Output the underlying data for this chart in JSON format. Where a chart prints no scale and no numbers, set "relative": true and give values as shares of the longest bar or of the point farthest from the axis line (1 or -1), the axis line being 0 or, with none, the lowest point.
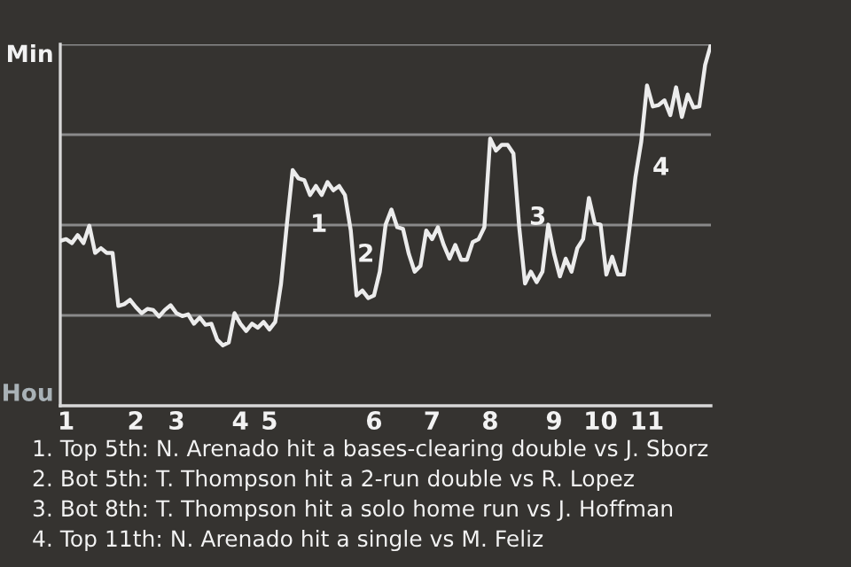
{
  "chart_data": {
    "type": "line",
    "relative": true,
    "categories": [
      null,
      "1",
      null,
      null,
      null,
      null,
      null,
      null,
      null,
      null,
      null,
      null,
      null,
      "2",
      null,
      null,
      null,
      null,
      null,
      null,
      "3",
      null,
      null,
      null,
      null,
      null,
      null,
      null,
      null,
      null,
      null,
      "4",
      null,
      null,
      null,
      null,
      "5",
      null,
      null,
      null,
      null,
      null,
      null,
      null,
      null,
      null,
      null,
      null,
      null,
      null,
      null,
      null,
      null,
      null,
      "6",
      null,
      null,
      null,
      null,
      null,
      null,
      null,
      null,
      null,
      "7",
      null,
      null,
      null,
      null,
      null,
      null,
      null,
      null,
      null,
      "8",
      null,
      null,
      null,
      null,
      null,
      null,
      null,
      null,
      null,
      null,
      "9",
      null,
      null,
      null,
      null,
      null,
      null,
      null,
      "10",
      null,
      null,
      null,
      null,
      null,
      null,
      null,
      "11",
      null,
      null,
      null,
      null,
      null,
      null,
      null,
      null,
      null,
      null,
      null
    ],
    "marker": "none",
    "line_style": "solid",
    "series": [
      {
        "color": "#ececec",
        "values": [
          0.456,
          0.461,
          0.45,
          0.472,
          0.45,
          0.498,
          0.423,
          0.436,
          0.423,
          0.423,
          0.276,
          0.281,
          0.293,
          0.273,
          0.256,
          0.268,
          0.265,
          0.247,
          0.265,
          0.278,
          0.256,
          0.248,
          0.253,
          0.227,
          0.244,
          0.224,
          0.227,
          0.183,
          0.167,
          0.175,
          0.256,
          0.227,
          0.207,
          0.227,
          0.216,
          0.232,
          0.211,
          0.232,
          0.338,
          0.501,
          0.652,
          0.629,
          0.624,
          0.583,
          0.608,
          0.583,
          0.619,
          0.596,
          0.608,
          0.583,
          0.485,
          0.305,
          0.319,
          0.298,
          0.305,
          0.371,
          0.501,
          0.543,
          0.494,
          0.489,
          0.42,
          0.371,
          0.387,
          0.485,
          0.461,
          0.494,
          0.445,
          0.407,
          0.445,
          0.404,
          0.404,
          0.453,
          0.461,
          0.494,
          0.739,
          0.706,
          0.722,
          0.722,
          0.698,
          0.494,
          0.338,
          0.371,
          0.342,
          0.371,
          0.501,
          0.42,
          0.358,
          0.407,
          0.371,
          0.436,
          0.461,
          0.575,
          0.505,
          0.501,
          0.363,
          0.412,
          0.363,
          0.363,
          0.494,
          0.632,
          0.73,
          0.886,
          0.828,
          0.832,
          0.845,
          0.804,
          0.881,
          0.799,
          0.861,
          0.825,
          0.828,
          0.943,
          1.0
        ]
      }
    ],
    "ref_lines": [
      {
        "axis": "y",
        "value": 0.25,
        "color": "#8a8a8a"
      },
      {
        "axis": "y",
        "value": 0.5,
        "color": "#8a8a8a"
      },
      {
        "axis": "y",
        "value": 0.75,
        "color": "#8a8a8a"
      },
      {
        "axis": "y",
        "value": 1,
        "color": "#8a8a8a"
      }
    ],
    "annotations": [
      "Min",
      "Hou",
      "1",
      "2",
      "3",
      "4",
      "1. Top 5th: N. Arenado hit a bases-clearing double vs J. Sborz",
      "2. Bot 5th: T. Thompson hit a 2-run double vs R. Lopez",
      "3. Bot 8th: T. Thompson hit a solo home run vs J. Hoffman",
      "4. Top 11th: N. Arenado hit a single vs M. Feliz"
    ]
  }
}
